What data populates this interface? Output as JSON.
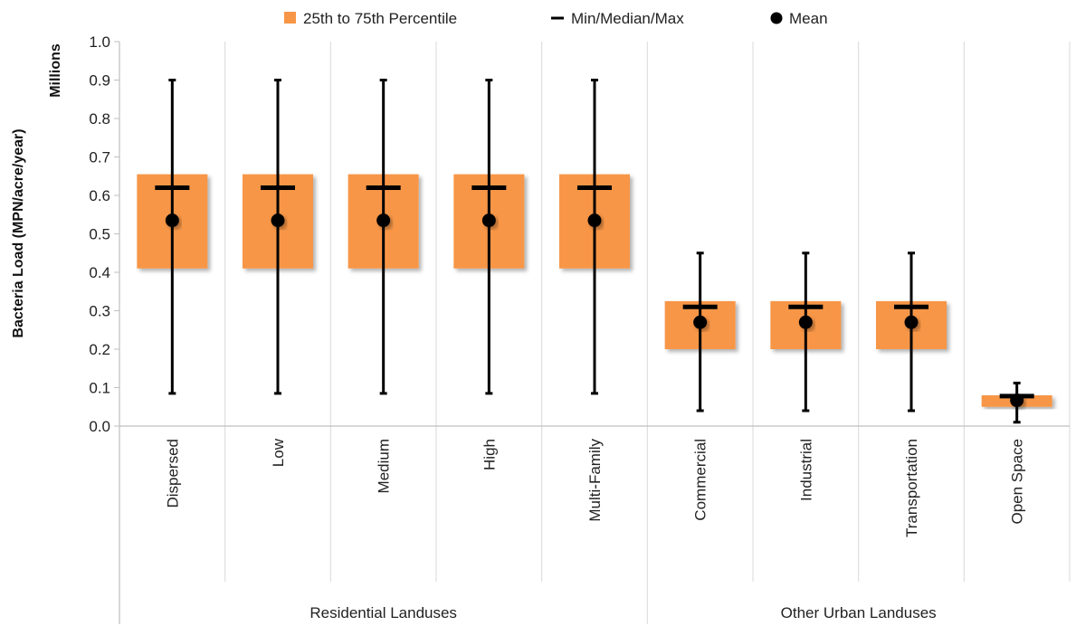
{
  "chart_data": {
    "type": "box",
    "ylabel": "Bacteria Load (MPN/acre/year)",
    "yunit_label": "Millions",
    "ylim": [
      0.0,
      1.0
    ],
    "yticks": [
      "0.0",
      "0.1",
      "0.2",
      "0.3",
      "0.4",
      "0.5",
      "0.6",
      "0.7",
      "0.8",
      "0.9",
      "1.0"
    ],
    "grid": "vertical category separators",
    "legend_position": "top",
    "legend": [
      {
        "label": "25th to 75th Percentile",
        "marker": "square"
      },
      {
        "label": "Min/Median/Max",
        "marker": "dash"
      },
      {
        "label": "Mean",
        "marker": "dot"
      }
    ],
    "groups": [
      {
        "label": "Residential Landuses",
        "categories": [
          "Dispersed",
          "Low",
          "Medium",
          "High",
          "Multi-Family"
        ]
      },
      {
        "label": "Other Urban Landuses",
        "categories": [
          "Commercial",
          "Industrial",
          "Transportation",
          "Open Space"
        ]
      }
    ],
    "series": [
      {
        "category": "Dispersed",
        "min": 0.085,
        "q1": 0.41,
        "median": 0.62,
        "q3": 0.655,
        "max": 0.9,
        "mean": 0.535
      },
      {
        "category": "Low",
        "min": 0.085,
        "q1": 0.41,
        "median": 0.62,
        "q3": 0.655,
        "max": 0.9,
        "mean": 0.535
      },
      {
        "category": "Medium",
        "min": 0.085,
        "q1": 0.41,
        "median": 0.62,
        "q3": 0.655,
        "max": 0.9,
        "mean": 0.535
      },
      {
        "category": "High",
        "min": 0.085,
        "q1": 0.41,
        "median": 0.62,
        "q3": 0.655,
        "max": 0.9,
        "mean": 0.535
      },
      {
        "category": "Multi-Family",
        "min": 0.085,
        "q1": 0.41,
        "median": 0.62,
        "q3": 0.655,
        "max": 0.9,
        "mean": 0.535
      },
      {
        "category": "Commercial",
        "min": 0.04,
        "q1": 0.2,
        "median": 0.31,
        "q3": 0.325,
        "max": 0.45,
        "mean": 0.27
      },
      {
        "category": "Industrial",
        "min": 0.04,
        "q1": 0.2,
        "median": 0.31,
        "q3": 0.325,
        "max": 0.45,
        "mean": 0.27
      },
      {
        "category": "Transportation",
        "min": 0.04,
        "q1": 0.2,
        "median": 0.31,
        "q3": 0.325,
        "max": 0.45,
        "mean": 0.27
      },
      {
        "category": "Open Space",
        "min": 0.01,
        "q1": 0.05,
        "median": 0.078,
        "q3": 0.08,
        "max": 0.112,
        "mean": 0.067
      }
    ],
    "colors": {
      "box": "#f79646",
      "box_shadow": "#b9b9b9",
      "whisker": "#000000",
      "mean": "#000000",
      "axis": "#bfbfbf",
      "grid": "#d9d9d9"
    }
  }
}
